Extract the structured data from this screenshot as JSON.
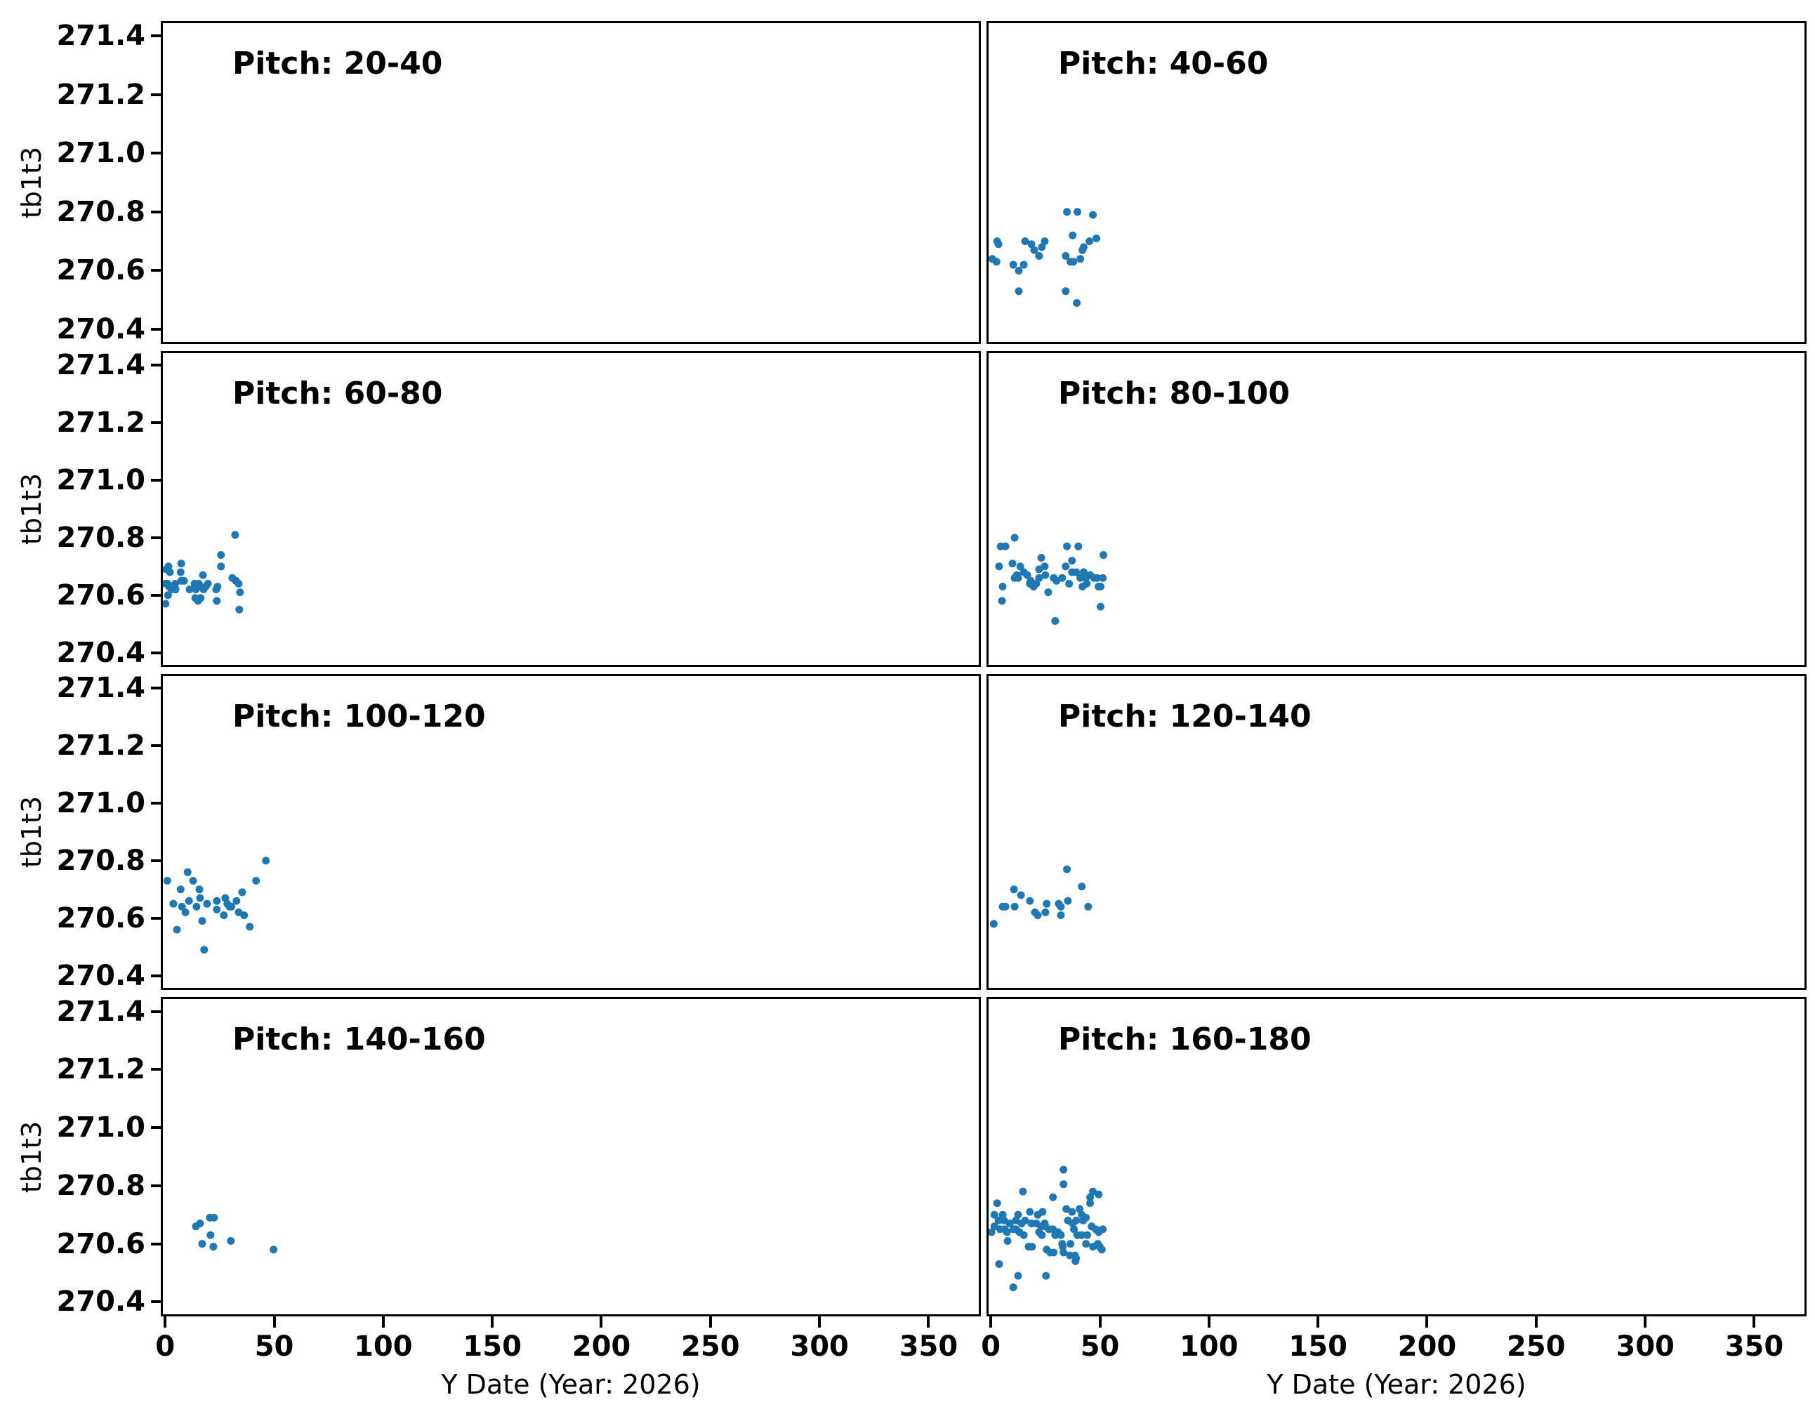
{
  "figure": {
    "background": "#ffffff",
    "spine_color": "#000000",
    "marker_color": "#1f77b4",
    "x_axis": {
      "label": "Y Date (Year: 2026)",
      "ticks": [
        0,
        50,
        100,
        150,
        200,
        250,
        300,
        350
      ],
      "lim": [
        -2,
        374
      ]
    },
    "y_axis": {
      "label": "tb1t3",
      "ticks": [
        271.4,
        271.2,
        271.0,
        270.8,
        270.6,
        270.4
      ],
      "lim": [
        270.35,
        271.45
      ]
    }
  },
  "chart_data": {
    "type": "scatter",
    "layout": "4x2 grid, shared axes",
    "xlabel": "Y Date (Year: 2026)",
    "ylabel": "tb1t3",
    "grid": false,
    "legend": false,
    "marker_color": "#1f77b4",
    "xlim": [
      -2,
      374
    ],
    "ylim": [
      270.35,
      271.45
    ],
    "subplots": [
      {
        "title": "Pitch: 20-40",
        "points": []
      },
      {
        "title": "Pitch: 40-60",
        "points": [
          [
            34.9,
            270.8
          ],
          [
            39.7,
            270.8
          ],
          [
            46.8,
            270.79
          ],
          [
            37.5,
            270.72
          ],
          [
            2.9,
            270.7
          ],
          [
            3.5,
            270.69
          ],
          [
            15.7,
            270.7
          ],
          [
            18.6,
            270.69
          ],
          [
            24.7,
            270.7
          ],
          [
            48.4,
            270.71
          ],
          [
            45.2,
            270.7
          ],
          [
            23.4,
            270.68
          ],
          [
            19.9,
            270.67
          ],
          [
            42.6,
            270.68
          ],
          [
            42.0,
            270.67
          ],
          [
            22.1,
            270.65
          ],
          [
            34.3,
            270.65
          ],
          [
            0.6,
            270.64
          ],
          [
            2.6,
            270.63
          ],
          [
            36.5,
            270.63
          ],
          [
            37.8,
            270.63
          ],
          [
            41.0,
            270.64
          ],
          [
            10.3,
            270.62
          ],
          [
            15.1,
            270.62
          ],
          [
            12.8,
            270.6
          ],
          [
            12.8,
            270.53
          ],
          [
            34.3,
            270.53
          ],
          [
            39.4,
            270.49
          ]
        ]
      },
      {
        "title": "Pitch: 60-80",
        "points": [
          [
            32.1,
            270.81
          ],
          [
            25.6,
            270.74
          ],
          [
            25.6,
            270.7
          ],
          [
            7.4,
            270.71
          ],
          [
            0.5,
            270.69
          ],
          [
            1.5,
            270.7
          ],
          [
            2.2,
            270.68
          ],
          [
            7.1,
            270.68
          ],
          [
            17.3,
            270.67
          ],
          [
            7.4,
            270.65
          ],
          [
            8.7,
            270.65
          ],
          [
            30.8,
            270.66
          ],
          [
            32.4,
            270.65
          ],
          [
            0.3,
            270.64
          ],
          [
            1.0,
            270.64
          ],
          [
            1.8,
            270.63
          ],
          [
            4.6,
            270.64
          ],
          [
            15.4,
            270.64
          ],
          [
            13.5,
            270.64
          ],
          [
            16.3,
            270.63
          ],
          [
            18.6,
            270.63
          ],
          [
            19.6,
            270.64
          ],
          [
            24.0,
            270.63
          ],
          [
            33.7,
            270.64
          ],
          [
            2.9,
            270.62
          ],
          [
            4.8,
            270.62
          ],
          [
            11.2,
            270.62
          ],
          [
            14.1,
            270.62
          ],
          [
            17.6,
            270.62
          ],
          [
            1.3,
            270.6
          ],
          [
            23.4,
            270.62
          ],
          [
            13.8,
            270.59
          ],
          [
            15.1,
            270.58
          ],
          [
            16.3,
            270.59
          ],
          [
            23.7,
            270.58
          ],
          [
            34.3,
            270.61
          ],
          [
            0.2,
            270.57
          ],
          [
            34.0,
            270.55
          ]
        ]
      },
      {
        "title": "Pitch: 80-100",
        "points": [
          [
            10.9,
            270.8
          ],
          [
            4.5,
            270.77
          ],
          [
            6.7,
            270.77
          ],
          [
            34.9,
            270.77
          ],
          [
            40.1,
            270.77
          ],
          [
            51.6,
            270.74
          ],
          [
            23.1,
            270.73
          ],
          [
            37.2,
            270.72
          ],
          [
            3.8,
            270.7
          ],
          [
            9.9,
            270.71
          ],
          [
            13.5,
            270.7
          ],
          [
            24.7,
            270.7
          ],
          [
            22.1,
            270.69
          ],
          [
            34.3,
            270.7
          ],
          [
            37.2,
            270.68
          ],
          [
            15.1,
            270.68
          ],
          [
            11.9,
            270.67
          ],
          [
            12.5,
            270.66
          ],
          [
            16.7,
            270.67
          ],
          [
            25.0,
            270.67
          ],
          [
            39.1,
            270.68
          ],
          [
            42.6,
            270.68
          ],
          [
            45.5,
            270.67
          ],
          [
            10.9,
            270.66
          ],
          [
            18.3,
            270.65
          ],
          [
            22.1,
            270.66
          ],
          [
            28.8,
            270.66
          ],
          [
            30.1,
            270.65
          ],
          [
            32.7,
            270.66
          ],
          [
            41.0,
            270.66
          ],
          [
            43.6,
            270.66
          ],
          [
            47.4,
            270.66
          ],
          [
            48.7,
            270.66
          ],
          [
            51.3,
            270.66
          ],
          [
            17.9,
            270.64
          ],
          [
            19.6,
            270.63
          ],
          [
            20.8,
            270.64
          ],
          [
            35.9,
            270.64
          ],
          [
            42.0,
            270.63
          ],
          [
            43.9,
            270.64
          ],
          [
            49.4,
            270.63
          ],
          [
            50.3,
            270.63
          ],
          [
            5.4,
            270.63
          ],
          [
            26.3,
            270.61
          ],
          [
            5.1,
            270.58
          ],
          [
            50.3,
            270.56
          ],
          [
            29.5,
            270.51
          ]
        ]
      },
      {
        "title": "Pitch: 100-120",
        "points": [
          [
            46.2,
            270.8
          ],
          [
            10.3,
            270.76
          ],
          [
            12.8,
            270.73
          ],
          [
            1.0,
            270.73
          ],
          [
            41.7,
            270.73
          ],
          [
            7.1,
            270.7
          ],
          [
            15.7,
            270.7
          ],
          [
            35.3,
            270.69
          ],
          [
            16.0,
            270.67
          ],
          [
            27.6,
            270.67
          ],
          [
            32.7,
            270.66
          ],
          [
            3.8,
            270.65
          ],
          [
            10.9,
            270.66
          ],
          [
            7.7,
            270.64
          ],
          [
            14.4,
            270.64
          ],
          [
            19.2,
            270.65
          ],
          [
            23.7,
            270.66
          ],
          [
            23.7,
            270.63
          ],
          [
            28.5,
            270.65
          ],
          [
            29.5,
            270.64
          ],
          [
            30.4,
            270.64
          ],
          [
            9.3,
            270.62
          ],
          [
            26.9,
            270.61
          ],
          [
            33.7,
            270.62
          ],
          [
            36.2,
            270.61
          ],
          [
            17.0,
            270.59
          ],
          [
            5.4,
            270.56
          ],
          [
            38.8,
            270.57
          ],
          [
            17.9,
            270.49
          ]
        ]
      },
      {
        "title": "Pitch: 120-140",
        "points": [
          [
            34.9,
            270.77
          ],
          [
            10.6,
            270.7
          ],
          [
            41.7,
            270.71
          ],
          [
            13.8,
            270.68
          ],
          [
            17.9,
            270.66
          ],
          [
            5.4,
            270.64
          ],
          [
            6.7,
            270.64
          ],
          [
            10.9,
            270.64
          ],
          [
            25.6,
            270.65
          ],
          [
            31.1,
            270.65
          ],
          [
            32.1,
            270.64
          ],
          [
            35.3,
            270.66
          ],
          [
            44.6,
            270.64
          ],
          [
            20.2,
            270.62
          ],
          [
            21.5,
            270.61
          ],
          [
            25.0,
            270.62
          ],
          [
            32.1,
            270.61
          ],
          [
            1.3,
            270.58
          ]
        ]
      },
      {
        "title": "Pitch: 140-160",
        "points": [
          [
            20.5,
            270.69
          ],
          [
            22.4,
            270.69
          ],
          [
            16.0,
            270.67
          ],
          [
            14.1,
            270.66
          ],
          [
            20.8,
            270.63
          ],
          [
            30.1,
            270.61
          ],
          [
            17.0,
            270.6
          ],
          [
            22.1,
            270.59
          ],
          [
            49.7,
            270.58
          ]
        ]
      },
      {
        "title": "Pitch: 160-180",
        "points": [
          [
            33.3,
            270.855
          ],
          [
            33.3,
            270.805
          ],
          [
            14.7,
            270.78
          ],
          [
            28.5,
            270.76
          ],
          [
            46.8,
            270.78
          ],
          [
            49.4,
            270.77
          ],
          [
            45.5,
            270.76
          ],
          [
            45.5,
            270.74
          ],
          [
            2.9,
            270.74
          ],
          [
            34.6,
            270.72
          ],
          [
            40.7,
            270.72
          ],
          [
            37.2,
            270.71
          ],
          [
            41.7,
            270.7
          ],
          [
            1.6,
            270.7
          ],
          [
            5.4,
            270.7
          ],
          [
            17.9,
            270.71
          ],
          [
            21.5,
            270.7
          ],
          [
            23.7,
            270.71
          ],
          [
            12.5,
            270.7
          ],
          [
            43.6,
            270.69
          ],
          [
            3.5,
            270.68
          ],
          [
            6.1,
            270.68
          ],
          [
            8.7,
            270.67
          ],
          [
            11.5,
            270.68
          ],
          [
            14.1,
            270.67
          ],
          [
            15.7,
            270.68
          ],
          [
            18.6,
            270.67
          ],
          [
            20.8,
            270.67
          ],
          [
            23.1,
            270.66
          ],
          [
            24.7,
            270.67
          ],
          [
            35.3,
            270.68
          ],
          [
            37.5,
            270.67
          ],
          [
            39.1,
            270.68
          ],
          [
            42.3,
            270.68
          ],
          [
            1.6,
            270.66
          ],
          [
            0.3,
            270.64
          ],
          [
            4.2,
            270.65
          ],
          [
            6.4,
            270.65
          ],
          [
            7.4,
            270.64
          ],
          [
            10.3,
            270.65
          ],
          [
            11.5,
            270.65
          ],
          [
            13.1,
            270.64
          ],
          [
            15.1,
            270.63
          ],
          [
            22.1,
            270.64
          ],
          [
            23.4,
            270.63
          ],
          [
            25.0,
            270.66
          ],
          [
            26.6,
            270.65
          ],
          [
            28.5,
            270.65
          ],
          [
            29.5,
            270.63
          ],
          [
            30.8,
            270.64
          ],
          [
            32.1,
            270.63
          ],
          [
            38.1,
            270.65
          ],
          [
            39.7,
            270.63
          ],
          [
            41.7,
            270.63
          ],
          [
            44.2,
            270.63
          ],
          [
            46.2,
            270.66
          ],
          [
            48.1,
            270.65
          ],
          [
            49.4,
            270.64
          ],
          [
            51.3,
            270.65
          ],
          [
            7.7,
            270.61
          ],
          [
            17.3,
            270.59
          ],
          [
            18.9,
            270.59
          ],
          [
            25.6,
            270.58
          ],
          [
            27.2,
            270.57
          ],
          [
            28.8,
            270.57
          ],
          [
            32.7,
            270.6
          ],
          [
            33.0,
            270.59
          ],
          [
            33.3,
            270.57
          ],
          [
            36.5,
            270.6
          ],
          [
            36.2,
            270.56
          ],
          [
            38.5,
            270.56
          ],
          [
            39.1,
            270.55
          ],
          [
            38.8,
            270.54
          ],
          [
            43.6,
            270.6
          ],
          [
            46.8,
            270.59
          ],
          [
            49.0,
            270.6
          ],
          [
            49.9,
            270.59
          ],
          [
            50.9,
            270.58
          ],
          [
            3.8,
            270.53
          ],
          [
            12.5,
            270.49
          ],
          [
            25.3,
            270.49
          ],
          [
            10.3,
            270.45
          ]
        ]
      }
    ]
  }
}
